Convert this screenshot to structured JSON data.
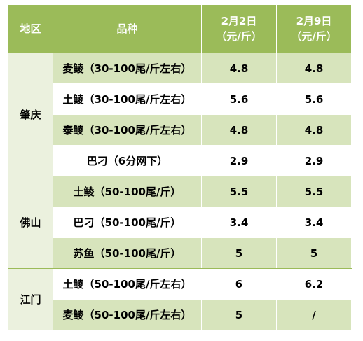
{
  "table": {
    "headers": {
      "region": "地区",
      "variety": "品种",
      "date1_line1": "2月2日",
      "date1_line2": "（元/斤）",
      "date2_line1": "2月9日",
      "date2_line2": "（元/斤）"
    },
    "groups": [
      {
        "region": "肇庆",
        "rows": [
          {
            "variety": "麦鲮（30-100尾/斤左右）",
            "date1": "4.8",
            "date2": "4.8"
          },
          {
            "variety": "土鲮（30-100尾/斤左右）",
            "date1": "5.6",
            "date2": "5.6"
          },
          {
            "variety": "泰鲮（30-100尾/斤左右）",
            "date1": "4.8",
            "date2": "4.8"
          },
          {
            "variety": "巴刁（6分网下）",
            "date1": "2.9",
            "date2": "2.9"
          }
        ]
      },
      {
        "region": "佛山",
        "rows": [
          {
            "variety": "土鲮（50-100尾/斤）",
            "date1": "5.5",
            "date2": "5.5"
          },
          {
            "variety": "巴刁（50-100尾/斤）",
            "date1": "3.4",
            "date2": "3.4"
          },
          {
            "variety": "苏鱼（50-100尾/斤）",
            "date1": "5",
            "date2": "5"
          }
        ]
      },
      {
        "region": "江门",
        "rows": [
          {
            "variety": "土鲮（50-100尾/斤左右）",
            "date1": "6",
            "date2": "6.2"
          },
          {
            "variety": "麦鲮（50-100尾/斤左右）",
            "date1": "5",
            "date2": "/"
          }
        ]
      }
    ]
  },
  "colors": {
    "header_bg": "#9bbb59",
    "row_shade": "#d7e4bc",
    "region_bg": "#ebf1de"
  }
}
